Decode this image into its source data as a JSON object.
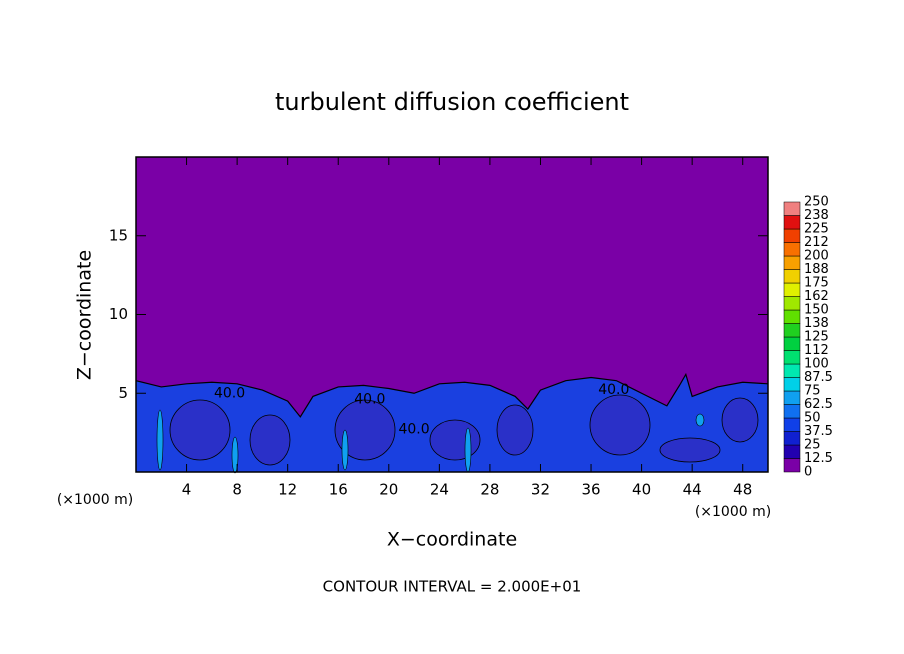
{
  "chart_data": {
    "type": "contour",
    "title": "turbulent diffusion coefficient",
    "xlabel": "X−coordinate",
    "ylabel": "Z−coordinate",
    "x_unit": "(×1000 m)",
    "footer": "CONTOUR INTERVAL = 2.000E+01",
    "xlim": [
      0,
      50
    ],
    "xticks": [
      4,
      8,
      12,
      16,
      20,
      24,
      28,
      32,
      36,
      40,
      44,
      48
    ],
    "ylim": [
      0,
      20
    ],
    "yticks": [
      5,
      10,
      15
    ],
    "background_color": "#7a00a6",
    "layer_color": "#1a40e0",
    "layer_top": {
      "x": [
        0,
        2,
        4,
        6,
        8,
        10,
        12,
        13,
        14,
        16,
        18,
        20,
        22,
        24,
        26,
        28,
        30,
        31,
        32,
        34,
        36,
        38,
        40,
        42,
        43,
        43.5,
        44,
        46,
        48,
        50
      ],
      "z": [
        5.8,
        5.4,
        5.6,
        5.7,
        5.6,
        5.2,
        4.5,
        3.5,
        4.8,
        5.4,
        5.5,
        5.3,
        5.0,
        5.6,
        5.7,
        5.5,
        4.8,
        4.0,
        5.2,
        5.8,
        6.0,
        5.8,
        5.0,
        4.2,
        5.5,
        6.2,
        4.8,
        5.4,
        5.7,
        5.6
      ]
    },
    "contour_labels": [
      {
        "x": 7.4,
        "z": 5.0,
        "value": 40,
        "label": "40.0"
      },
      {
        "x": 18.5,
        "z": 4.6,
        "value": 40,
        "label": "40.0"
      },
      {
        "x": 22.0,
        "z": 2.7,
        "value": 40,
        "label": "40.0"
      },
      {
        "x": 37.8,
        "z": 5.2,
        "value": 40,
        "label": "40.0"
      }
    ],
    "colorbar": {
      "levels": [
        0,
        12.5,
        25,
        37.5,
        50,
        62.5,
        75,
        87.5,
        100,
        112,
        125,
        138,
        150,
        162,
        175,
        188,
        200,
        212,
        225,
        238,
        250
      ],
      "colors": [
        "#7a00a6",
        "#2200b0",
        "#1020d0",
        "#1040e8",
        "#1070f0",
        "#10a0f0",
        "#00d0e8",
        "#00e8b0",
        "#00e070",
        "#00d040",
        "#20d020",
        "#60e000",
        "#a0e800",
        "#e0f000",
        "#f0d000",
        "#f8a000",
        "#f87000",
        "#f04000",
        "#e01010",
        "#f08080"
      ]
    }
  }
}
